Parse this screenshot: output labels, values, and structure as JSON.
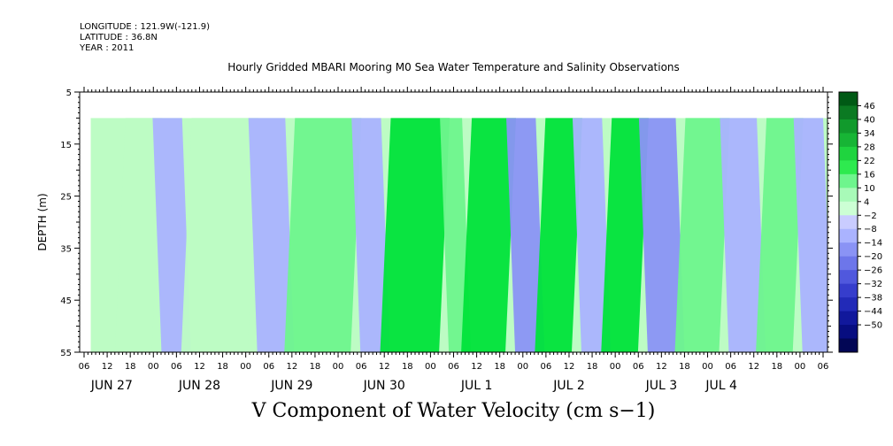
{
  "header": {
    "longitude": "LONGITUDE : 121.9W(-121.9)",
    "latitude": "LATITUDE : 36.8N",
    "year": "YEAR : 2011"
  },
  "chart_data": {
    "type": "heatmap",
    "title": "Hourly Gridded MBARI Mooring M0 Sea Water Temperature and Salinity Observations",
    "bottom_title": "V Component of Water Velocity (cm s−1)",
    "xlabel": "",
    "ylabel": "DEPTH (m)",
    "ylim": [
      55,
      5
    ],
    "y_ticks": [
      "5",
      "15",
      "25",
      "35",
      "45",
      "55"
    ],
    "y_tick_values": [
      5,
      15,
      25,
      35,
      45,
      55
    ],
    "x_hour_labels": [
      "06",
      "12",
      "18",
      "00",
      "06",
      "12",
      "18",
      "00",
      "06",
      "12",
      "18",
      "00",
      "06",
      "12",
      "18",
      "00",
      "06",
      "12",
      "18",
      "00",
      "06",
      "12",
      "18",
      "00",
      "06",
      "12",
      "18",
      "00",
      "06",
      "12",
      "18",
      "00",
      "06"
    ],
    "x_hour_positions": [
      0,
      1,
      2,
      3,
      4,
      5,
      6,
      7,
      8,
      9,
      10,
      11,
      12,
      13,
      14,
      15,
      16,
      17,
      18,
      19,
      20,
      21,
      22,
      23,
      24,
      25,
      26,
      27,
      28,
      29,
      30,
      31,
      32
    ],
    "x_day_labels": [
      "JUN 27",
      "JUN 28",
      "JUN 29",
      "JUN 30",
      "JUL  1",
      "JUL  2",
      "JUL  3",
      "JUL  4"
    ],
    "x_day_positions": [
      1.2,
      5,
      9,
      13,
      17,
      21,
      25,
      27.6
    ],
    "x_range_hours_from_first_tick": [
      0,
      200
    ],
    "data_start_offset": 0.16,
    "data_depth_range": [
      10,
      55
    ],
    "colorbar_labels": [
      "46",
      "40",
      "34",
      "28",
      "22",
      "16",
      "10",
      "4",
      "−2",
      "−8",
      "−14",
      "−20",
      "−26",
      "−32",
      "−38",
      "−44",
      "−50"
    ],
    "colorbar_range": [
      -50,
      50
    ],
    "colors": {
      "strong_green": "#00e33a",
      "mid_green": "#6ef58d",
      "light_green": "#bdfcc4",
      "light_blue": "#aab3ff",
      "mid_blue": "#8a93f5"
    },
    "field_bands": [
      {
        "x0": 0.04,
        "x1": 0.09,
        "value": 4
      },
      {
        "x0": 0.09,
        "x1": 0.13,
        "value": -4
      },
      {
        "x0": 0.13,
        "x1": 0.22,
        "value": 6
      },
      {
        "x0": 0.22,
        "x1": 0.27,
        "value": -6
      },
      {
        "x0": 0.27,
        "x1": 0.36,
        "value": 8
      },
      {
        "x0": 0.36,
        "x1": 0.4,
        "value": -4
      },
      {
        "x0": 0.4,
        "x1": 0.48,
        "value": 18
      },
      {
        "x0": 0.48,
        "x1": 0.51,
        "value": 10
      },
      {
        "x0": 0.51,
        "x1": 0.57,
        "value": 20
      },
      {
        "x0": 0.57,
        "x1": 0.61,
        "value": -8
      },
      {
        "x0": 0.61,
        "x1": 0.66,
        "value": 22
      },
      {
        "x0": 0.66,
        "x1": 0.7,
        "value": -6
      },
      {
        "x0": 0.7,
        "x1": 0.75,
        "value": 16
      },
      {
        "x0": 0.75,
        "x1": 0.8,
        "value": -8
      },
      {
        "x0": 0.8,
        "x1": 0.86,
        "value": 14
      },
      {
        "x0": 0.86,
        "x1": 0.91,
        "value": -4
      },
      {
        "x0": 0.91,
        "x1": 0.96,
        "value": 8
      },
      {
        "x0": 0.96,
        "x1": 1.0,
        "value": -6
      }
    ]
  }
}
